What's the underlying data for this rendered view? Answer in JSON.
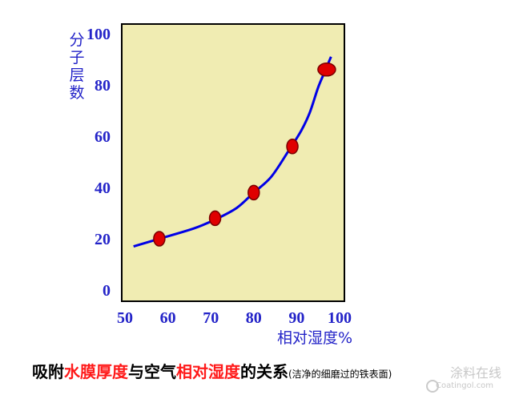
{
  "chart_data": {
    "type": "line",
    "xlabel": "相对湿度%",
    "ylabel": "分子层数",
    "xlim": [
      50,
      100
    ],
    "ylim": [
      0,
      100
    ],
    "xticks": [
      "50",
      "60",
      "70",
      "80",
      "90",
      "100"
    ],
    "yticks": [
      "0",
      "20",
      "40",
      "60",
      "80",
      "100"
    ],
    "curve": {
      "x": [
        52,
        58,
        66,
        71,
        76,
        80,
        84,
        88,
        91,
        93,
        95,
        96.5,
        98
      ],
      "y": [
        17,
        20,
        24,
        27.5,
        32,
        38,
        44,
        54,
        62,
        69,
        79,
        85,
        91
      ]
    },
    "points": {
      "x": [
        58,
        71,
        80,
        89,
        97
      ],
      "y": [
        20,
        28,
        38,
        56,
        86
      ]
    },
    "colors": {
      "plot_background": "#f0ecb2",
      "curve": "#0000e6",
      "points": "#e00000",
      "axis_text": "#2323c8"
    }
  },
  "caption": {
    "part1": "吸附",
    "part2": "水膜厚度",
    "part3": "与空气",
    "part4": "相对湿度",
    "part5": "的关系",
    "note": "(洁净的细磨过的铁表面)"
  },
  "watermark": {
    "title": "涂料在线",
    "subtitle": "Coatingol.com"
  }
}
